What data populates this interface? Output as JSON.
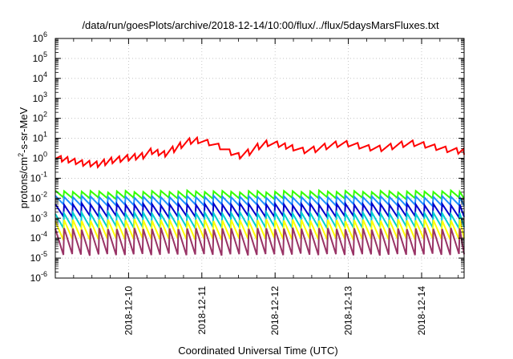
{
  "chart_data": {
    "type": "line",
    "title": "/data/run/goesPlots/archive/2018-12-14/10:00/flux/../flux/5daysMarsFluxes.txt",
    "xlabel": "Coordinated Universal Time (UTC)",
    "ylabel": {
      "pre": "protons/cm",
      "sup": "2",
      "post": "-s-sr-MeV"
    },
    "x_tick_labels": [
      "2018-12-10",
      "2018-12-11",
      "2018-12-12",
      "2018-12-13",
      "2018-12-14"
    ],
    "x_ticks_days": [
      0,
      1,
      2,
      3,
      4
    ],
    "xlim_days": [
      -1.0,
      4.58
    ],
    "y_scale": "log",
    "ylim": [
      1e-06,
      1000000.0
    ],
    "y_tick_exponents": [
      -6,
      -5,
      -4,
      -3,
      -2,
      -1,
      0,
      1,
      2,
      3,
      4,
      5,
      6
    ],
    "y_tick_base": "10",
    "grid": true,
    "series": [
      {
        "color": "#ff0000",
        "style": "sawtooth",
        "points": [
          {
            "t": -1.0,
            "v": 0.95
          },
          {
            "t": -0.82,
            "v": 0.75
          },
          {
            "t": -0.62,
            "v": 0.52
          },
          {
            "t": -0.42,
            "v": 0.45
          },
          {
            "t": -0.22,
            "v": 0.7
          },
          {
            "t": 0.0,
            "v": 0.95
          },
          {
            "t": 0.2,
            "v": 1.2
          },
          {
            "t": 0.32,
            "v": 2.0
          },
          {
            "t": 0.5,
            "v": 1.5
          },
          {
            "t": 0.62,
            "v": 2.5
          },
          {
            "t": 0.72,
            "v": 4.0
          },
          {
            "t": 0.85,
            "v": 6.5
          },
          {
            "t": 0.95,
            "v": 7.0
          },
          {
            "t": 1.1,
            "v": 5.5
          },
          {
            "t": 1.25,
            "v": 3.5
          },
          {
            "t": 1.4,
            "v": 1.8
          },
          {
            "t": 1.52,
            "v": 1.2
          },
          {
            "t": 1.65,
            "v": 1.8
          },
          {
            "t": 1.78,
            "v": 3.5
          },
          {
            "t": 1.9,
            "v": 5.0
          },
          {
            "t": 2.05,
            "v": 4.5
          },
          {
            "t": 2.25,
            "v": 3.0
          },
          {
            "t": 2.4,
            "v": 2.2
          },
          {
            "t": 2.55,
            "v": 2.5
          },
          {
            "t": 2.7,
            "v": 3.5
          },
          {
            "t": 2.85,
            "v": 4.5
          },
          {
            "t": 3.0,
            "v": 4.8
          },
          {
            "t": 3.15,
            "v": 3.8
          },
          {
            "t": 3.3,
            "v": 3.0
          },
          {
            "t": 3.45,
            "v": 2.8
          },
          {
            "t": 3.6,
            "v": 3.5
          },
          {
            "t": 3.75,
            "v": 4.5
          },
          {
            "t": 3.9,
            "v": 5.0
          },
          {
            "t": 4.05,
            "v": 4.2
          },
          {
            "t": 4.2,
            "v": 3.2
          },
          {
            "t": 4.35,
            "v": 2.5
          },
          {
            "t": 4.5,
            "v": 2.1
          },
          {
            "t": 4.58,
            "v": 1.9
          }
        ]
      },
      {
        "color": "#33ff00",
        "style": "sawtooth",
        "peak": 0.022,
        "trough": 0.01
      },
      {
        "color": "#1e90ff",
        "style": "sawtooth",
        "peak": 0.012,
        "trough": 0.0045
      },
      {
        "color": "#0000cc",
        "style": "sawtooth",
        "peak": 0.005,
        "trough": 0.0012
      },
      {
        "color": "#00ced1",
        "style": "sawtooth",
        "peak": 0.0018,
        "trough": 0.00035
      },
      {
        "color": "#ffff00",
        "style": "sawtooth",
        "peak": 0.0008,
        "trough": 9e-05
      },
      {
        "color": "#993366",
        "style": "sawtooth",
        "peak": 0.0003,
        "trough": 1.5e-05
      }
    ]
  }
}
